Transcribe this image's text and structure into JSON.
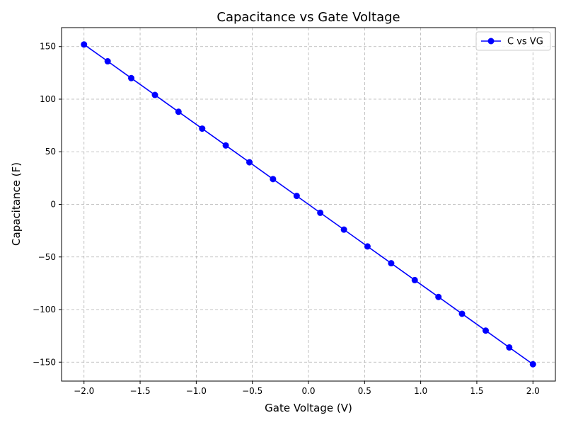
{
  "chart_data": {
    "type": "line",
    "title": "Capacitance vs Gate Voltage",
    "xlabel": "Gate Voltage (V)",
    "ylabel": "Capacitance (F)",
    "xlim": [
      -2.2,
      2.2
    ],
    "ylim": [
      -168,
      168
    ],
    "xticks": [
      -2.0,
      -1.5,
      -1.0,
      -0.5,
      0.0,
      0.5,
      1.0,
      1.5,
      2.0
    ],
    "xtick_labels": [
      "−2.0",
      "−1.5",
      "−1.0",
      "−0.5",
      "0.0",
      "0.5",
      "1.0",
      "1.5",
      "2.0"
    ],
    "yticks": [
      -150,
      -100,
      -50,
      0,
      50,
      100,
      150
    ],
    "ytick_labels": [
      "−150",
      "−100",
      "−50",
      "0",
      "50",
      "100",
      "150"
    ],
    "grid": true,
    "legend_position": "top-right",
    "series": [
      {
        "name": "C vs VG",
        "color": "#0000ff",
        "marker": "circle",
        "x": [
          -2.0,
          -1.789,
          -1.579,
          -1.368,
          -1.158,
          -0.947,
          -0.737,
          -0.526,
          -0.316,
          -0.105,
          0.105,
          0.316,
          0.526,
          0.737,
          0.947,
          1.158,
          1.368,
          1.579,
          1.789,
          2.0
        ],
        "y": [
          152,
          136,
          120,
          104,
          88,
          72,
          56,
          40,
          24,
          8,
          -8,
          -24,
          -40,
          -56,
          -72,
          -88,
          -104,
          -120,
          -136,
          -152
        ]
      }
    ]
  }
}
